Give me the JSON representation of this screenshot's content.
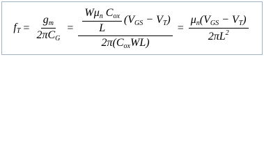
{
  "equation": {
    "lhs": [
      {
        "base": "f",
        "sub": "T"
      }
    ],
    "eq1": "=",
    "frac1": {
      "num": [
        {
          "base": "g",
          "sub": "m"
        }
      ],
      "den": [
        {
          "base": "2πC",
          "sub": "G"
        }
      ]
    },
    "eq2": "=",
    "frac2": {
      "num": {
        "frac": {
          "num": [
            {
              "base": "Wμ",
              "sub": "n"
            },
            {
              "base": " C",
              "sub": "ox"
            }
          ],
          "den": [
            {
              "base": "L"
            }
          ]
        },
        "tail": [
          {
            "base": "(V",
            "sub": "GS"
          },
          {
            "base": " − V",
            "sub": "T"
          },
          {
            "base": ")"
          }
        ]
      },
      "den": [
        {
          "base": "2π(C",
          "sub": "ox"
        },
        {
          "base": "WL)"
        }
      ]
    },
    "eq3": "=",
    "frac3": {
      "num": [
        {
          "base": "μ",
          "sub": "n"
        },
        {
          "base": "(V",
          "sub": "GS"
        },
        {
          "base": " − V",
          "sub": "T"
        },
        {
          "base": ")"
        }
      ],
      "den": [
        {
          "base": "2πL",
          "sup": "2"
        }
      ]
    }
  }
}
